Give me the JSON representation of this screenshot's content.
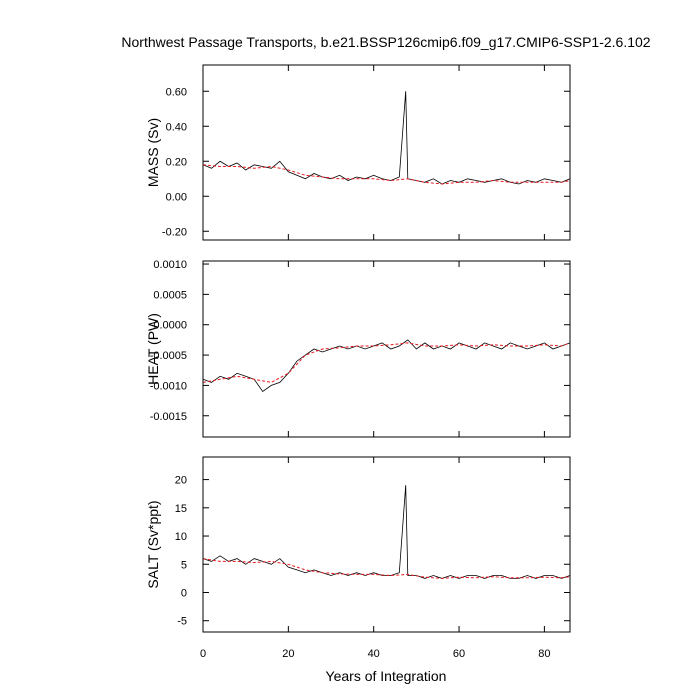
{
  "title": "Northwest Passage Transports, b.e21.BSSP126cmip6.f09_g17.CMIP6-SSP1-2.6.102",
  "xlabel": "Years of Integration",
  "colors": {
    "raw": "#000000",
    "smoothed": "#e8191f",
    "frame": "#000000"
  },
  "chart_data": [
    {
      "type": "line",
      "ylabel": "MASS (Sv)",
      "xlim": [
        0,
        86
      ],
      "ylim": [
        -0.25,
        0.75
      ],
      "x_ticks": [
        0,
        20,
        40,
        60,
        80
      ],
      "x_tick_labels": [
        "0",
        "20",
        "40",
        "60",
        "80"
      ],
      "y_ticks": [
        -0.2,
        0.0,
        0.2,
        0.4,
        0.6
      ],
      "y_tick_labels": [
        "-0.20",
        "0.00",
        "0.20",
        "0.40",
        "0.60"
      ],
      "grid": false,
      "series": [
        {
          "role": "monthly",
          "x": [
            0,
            2,
            4,
            6,
            8,
            10,
            12,
            14,
            16,
            18,
            20,
            22,
            24,
            26,
            28,
            30,
            32,
            34,
            36,
            38,
            40,
            42,
            44,
            46,
            47.5,
            48,
            50,
            52,
            54,
            56,
            58,
            60,
            62,
            64,
            66,
            68,
            70,
            72,
            74,
            76,
            78,
            80,
            82,
            84,
            86
          ],
          "values": [
            0.18,
            0.16,
            0.2,
            0.17,
            0.19,
            0.15,
            0.18,
            0.17,
            0.16,
            0.2,
            0.14,
            0.12,
            0.1,
            0.13,
            0.11,
            0.1,
            0.12,
            0.09,
            0.11,
            0.1,
            0.12,
            0.1,
            0.09,
            0.11,
            0.6,
            0.1,
            0.09,
            0.08,
            0.1,
            0.07,
            0.09,
            0.08,
            0.1,
            0.09,
            0.08,
            0.09,
            0.1,
            0.08,
            0.07,
            0.09,
            0.08,
            0.1,
            0.09,
            0.08,
            0.1
          ]
        },
        {
          "role": "smoothed",
          "x": [
            0,
            4,
            8,
            12,
            16,
            20,
            24,
            28,
            32,
            36,
            40,
            44,
            48,
            52,
            56,
            60,
            64,
            68,
            72,
            76,
            80,
            84,
            86
          ],
          "values": [
            0.18,
            0.17,
            0.17,
            0.16,
            0.17,
            0.15,
            0.12,
            0.11,
            0.1,
            0.1,
            0.1,
            0.09,
            0.1,
            0.08,
            0.07,
            0.08,
            0.08,
            0.09,
            0.08,
            0.08,
            0.08,
            0.08,
            0.09
          ]
        }
      ]
    },
    {
      "type": "line",
      "ylabel": "HEAT (PW)",
      "xlim": [
        0,
        86
      ],
      "ylim": [
        -0.00185,
        0.00105
      ],
      "x_ticks": [
        0,
        20,
        40,
        60,
        80
      ],
      "x_tick_labels": [
        "0",
        "20",
        "40",
        "60",
        "80"
      ],
      "y_ticks": [
        -0.0015,
        -0.001,
        -0.0005,
        0.0,
        0.0005,
        0.001
      ],
      "y_tick_labels": [
        "-0.0015",
        "-0.0010",
        "-0.0005",
        "0.0000",
        "0.0005",
        "0.0010"
      ],
      "grid": false,
      "series": [
        {
          "role": "monthly",
          "x": [
            0,
            2,
            4,
            6,
            8,
            10,
            12,
            14,
            16,
            18,
            20,
            22,
            24,
            26,
            28,
            30,
            32,
            34,
            36,
            38,
            40,
            42,
            44,
            46,
            48,
            50,
            52,
            54,
            56,
            58,
            60,
            62,
            64,
            66,
            68,
            70,
            72,
            74,
            76,
            78,
            80,
            82,
            84,
            86
          ],
          "values": [
            -0.0009,
            -0.00095,
            -0.00085,
            -0.0009,
            -0.0008,
            -0.00085,
            -0.0009,
            -0.0011,
            -0.001,
            -0.00095,
            -0.0008,
            -0.0006,
            -0.0005,
            -0.0004,
            -0.00045,
            -0.0004,
            -0.00035,
            -0.0004,
            -0.00035,
            -0.0004,
            -0.00035,
            -0.0003,
            -0.0004,
            -0.00035,
            -0.00025,
            -0.0004,
            -0.0003,
            -0.0004,
            -0.00035,
            -0.0004,
            -0.0003,
            -0.00035,
            -0.0004,
            -0.0003,
            -0.00035,
            -0.0004,
            -0.0003,
            -0.00035,
            -0.0004,
            -0.00035,
            -0.0003,
            -0.0004,
            -0.00035,
            -0.0003
          ]
        },
        {
          "role": "smoothed",
          "x": [
            0,
            4,
            8,
            12,
            16,
            20,
            24,
            28,
            32,
            36,
            40,
            44,
            48,
            52,
            56,
            60,
            64,
            68,
            72,
            76,
            80,
            84,
            86
          ],
          "values": [
            -0.00095,
            -0.0009,
            -0.00085,
            -0.0009,
            -0.00095,
            -0.0008,
            -0.0005,
            -0.0004,
            -0.00038,
            -0.00035,
            -0.00035,
            -0.00033,
            -0.0003,
            -0.00035,
            -0.00035,
            -0.00033,
            -0.00035,
            -0.00033,
            -0.00035,
            -0.00035,
            -0.00033,
            -0.00035,
            -0.0003
          ]
        }
      ]
    },
    {
      "type": "line",
      "ylabel": "SALT (Sv*ppt)",
      "xlim": [
        0,
        86
      ],
      "ylim": [
        -7,
        24
      ],
      "x_ticks": [
        0,
        20,
        40,
        60,
        80
      ],
      "x_tick_labels": [
        "0",
        "20",
        "40",
        "60",
        "80"
      ],
      "y_ticks": [
        -5,
        0,
        5,
        10,
        15,
        20
      ],
      "y_tick_labels": [
        "-5",
        "0",
        "5",
        "10",
        "15",
        "20"
      ],
      "grid": false,
      "series": [
        {
          "role": "monthly",
          "x": [
            0,
            2,
            4,
            6,
            8,
            10,
            12,
            14,
            16,
            18,
            20,
            22,
            24,
            26,
            28,
            30,
            32,
            34,
            36,
            38,
            40,
            42,
            44,
            46,
            47.5,
            48,
            50,
            52,
            54,
            56,
            58,
            60,
            62,
            64,
            66,
            68,
            70,
            72,
            74,
            76,
            78,
            80,
            82,
            84,
            86
          ],
          "values": [
            6,
            5.5,
            6.5,
            5.5,
            6,
            5,
            6,
            5.5,
            5,
            6,
            4.5,
            4,
            3.5,
            4,
            3.5,
            3,
            3.5,
            3,
            3.5,
            3,
            3.5,
            3,
            3,
            3.5,
            19,
            3,
            3,
            2.5,
            3,
            2.5,
            3,
            2.5,
            3,
            3,
            2.5,
            3,
            3,
            2.5,
            2.5,
            3,
            2.5,
            3,
            3,
            2.5,
            3
          ]
        },
        {
          "role": "smoothed",
          "x": [
            0,
            4,
            8,
            12,
            16,
            20,
            24,
            28,
            32,
            36,
            40,
            44,
            48,
            52,
            56,
            60,
            64,
            68,
            72,
            76,
            80,
            84,
            86
          ],
          "values": [
            6,
            5.5,
            5.5,
            5.3,
            5.5,
            5,
            4,
            3.5,
            3.3,
            3.2,
            3.2,
            3,
            3.2,
            2.7,
            2.5,
            2.7,
            2.6,
            2.8,
            2.6,
            2.6,
            2.7,
            2.6,
            2.8
          ]
        }
      ]
    }
  ]
}
